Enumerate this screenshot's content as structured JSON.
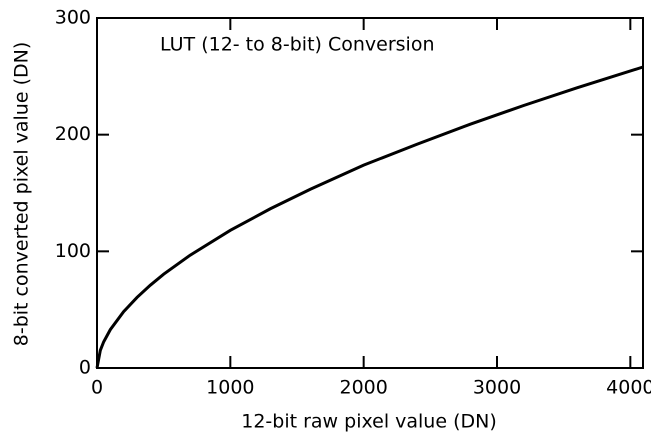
{
  "chart_data": {
    "type": "line",
    "annotation": "LUT (12- to 8-bit) Conversion",
    "xlabel": "12-bit raw pixel value (DN)",
    "ylabel": "8-bit converted pixel value (DN)",
    "x": [
      0,
      25,
      50,
      100,
      200,
      300,
      400,
      500,
      700,
      1000,
      1300,
      1600,
      2000,
      2400,
      2800,
      3200,
      3600,
      4095
    ],
    "series": [
      {
        "name": "LUT",
        "color": "#000000",
        "values": [
          0,
          15.2,
          22.4,
          32.9,
          48.3,
          60.5,
          71.0,
          80.4,
          96.8,
          118,
          136.5,
          153.2,
          173.9,
          191.8,
          209.0,
          225.0,
          240.2,
          258
        ]
      }
    ],
    "xlim": [
      0,
      4095
    ],
    "xticks": [
      0,
      1000,
      2000,
      3000,
      4000
    ],
    "ylim": [
      0,
      300
    ],
    "yticks": [
      0,
      100,
      200,
      300
    ]
  }
}
